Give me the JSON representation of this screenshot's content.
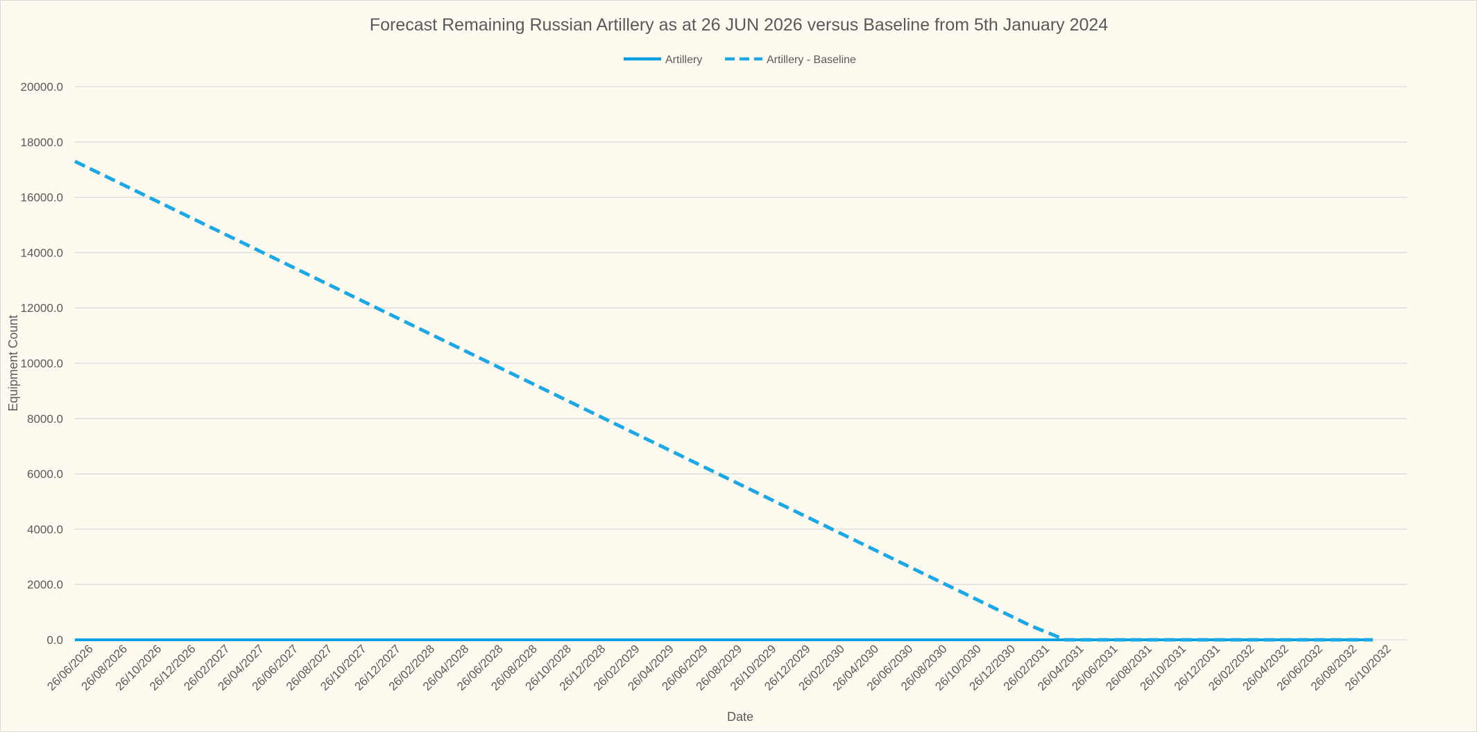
{
  "chart_data": {
    "type": "line",
    "title": "Forecast Remaining Russian Artillery as at 26 JUN 2026 versus Baseline from 5th January 2024",
    "xlabel": "Date",
    "ylabel": "Equipment Count",
    "ylim": [
      0,
      20000
    ],
    "yticks": [
      "0.0",
      "2000.0",
      "4000.0",
      "6000.0",
      "8000.0",
      "10000.0",
      "12000.0",
      "14000.0",
      "16000.0",
      "18000.0",
      "20000.0"
    ],
    "categories": [
      "26/06/2026",
      "26/08/2026",
      "26/10/2026",
      "26/12/2026",
      "26/02/2027",
      "26/04/2027",
      "26/06/2027",
      "26/08/2027",
      "26/10/2027",
      "26/12/2027",
      "26/02/2028",
      "26/04/2028",
      "26/06/2028",
      "26/08/2028",
      "26/10/2028",
      "26/12/2028",
      "26/02/2029",
      "26/04/2029",
      "26/06/2029",
      "26/08/2029",
      "26/10/2029",
      "26/12/2029",
      "26/02/2030",
      "26/04/2030",
      "26/06/2030",
      "26/08/2030",
      "26/10/2030",
      "26/12/2030",
      "26/02/2031",
      "26/04/2031",
      "26/06/2031",
      "26/08/2031",
      "26/10/2031",
      "26/12/2031",
      "26/02/2032",
      "26/04/2032",
      "26/06/2032",
      "26/08/2032",
      "26/10/2032"
    ],
    "series": [
      {
        "name": "Artillery",
        "style": "solid",
        "color": "#00a2e2",
        "values": [
          0,
          0,
          0,
          0,
          0,
          0,
          0,
          0,
          0,
          0,
          0,
          0,
          0,
          0,
          0,
          0,
          0,
          0,
          0,
          0,
          0,
          0,
          0,
          0,
          0,
          0,
          0,
          0,
          0,
          0,
          0,
          0,
          0,
          0,
          0,
          0,
          0,
          0,
          0
        ]
      },
      {
        "name": "Artillery - Baseline",
        "style": "dashed",
        "color": "#1ca8e4",
        "values": [
          17300,
          16700,
          16100,
          15500,
          14900,
          14300,
          13700,
          13100,
          12500,
          11900,
          11300,
          10700,
          10100,
          9500,
          8900,
          8300,
          7700,
          7100,
          6500,
          5900,
          5300,
          4700,
          4100,
          3500,
          2900,
          2300,
          1700,
          1100,
          500,
          0,
          0,
          0,
          0,
          0,
          0,
          0,
          0,
          0,
          0
        ]
      }
    ],
    "legend_position": "top",
    "grid": true
  }
}
